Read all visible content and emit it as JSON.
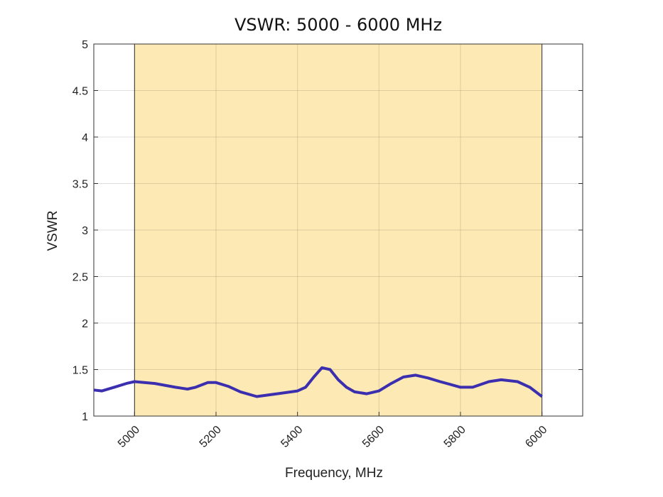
{
  "chart_data": {
    "type": "line",
    "title": "VSWR: 5000 - 6000 MHz",
    "xlabel": "Frequency, MHz",
    "ylabel": "VSWR",
    "xlim": [
      4900,
      6100
    ],
    "ylim": [
      1,
      5
    ],
    "xticks": [
      5000,
      5200,
      5400,
      5600,
      5800,
      6000
    ],
    "xtick_labels": [
      "5000",
      "5200",
      "5400",
      "5600",
      "5800",
      "6000"
    ],
    "yticks": [
      1,
      1.5,
      2,
      2.5,
      3,
      3.5,
      4,
      4.5,
      5
    ],
    "ytick_labels": [
      "1",
      "1.5",
      "2",
      "2.5",
      "3",
      "3.5",
      "4",
      "4.5",
      "5"
    ],
    "grid": true,
    "shaded_band": {
      "x": [
        5000,
        6000
      ],
      "color": "#fde9b3"
    },
    "series": [
      {
        "name": "VSWR",
        "color": "#3b2fb0",
        "x": [
          4900,
          4920,
          4950,
          4980,
          5000,
          5050,
          5100,
          5130,
          5150,
          5180,
          5200,
          5230,
          5260,
          5300,
          5350,
          5400,
          5420,
          5440,
          5460,
          5480,
          5500,
          5520,
          5540,
          5570,
          5600,
          5630,
          5660,
          5690,
          5720,
          5750,
          5800,
          5830,
          5870,
          5900,
          5940,
          5970,
          6000
        ],
        "y": [
          1.28,
          1.27,
          1.31,
          1.35,
          1.37,
          1.35,
          1.31,
          1.29,
          1.31,
          1.36,
          1.36,
          1.32,
          1.26,
          1.21,
          1.24,
          1.27,
          1.31,
          1.42,
          1.52,
          1.5,
          1.39,
          1.31,
          1.26,
          1.24,
          1.27,
          1.35,
          1.42,
          1.44,
          1.41,
          1.37,
          1.31,
          1.31,
          1.37,
          1.39,
          1.37,
          1.31,
          1.21
        ]
      }
    ]
  }
}
